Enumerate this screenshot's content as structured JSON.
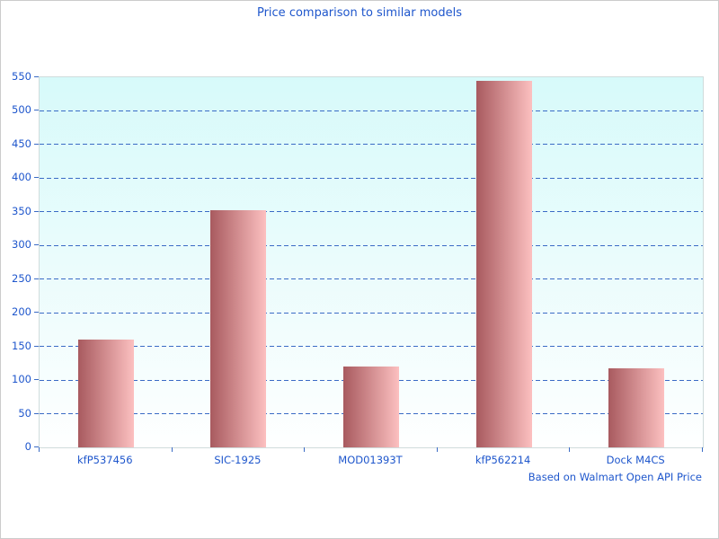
{
  "title": "Price comparison to similar models",
  "footer": "Based on Walmart Open API Price",
  "colors": {
    "text_blue": "#1e56cc",
    "gridline_blue": "#3a6bc5",
    "tick_blue": "#3a6bc5",
    "plot_bg_top": "#d7fafa",
    "plot_bg_bottom": "#feffff",
    "bar_gradient_left": "#a85a5f",
    "bar_gradient_right": "#fcc0c0",
    "plot_border": "#d0dcdc",
    "page_border": "#cccccc"
  },
  "chart_data": {
    "type": "bar",
    "title": "Price comparison to similar models",
    "subtitle": "Based on Walmart Open API Price",
    "categories": [
      "kfP537456",
      "SIC-1925",
      "MOD01393T",
      "kfP562214",
      "Dock M4CS"
    ],
    "values": [
      160,
      352,
      120,
      545,
      118
    ],
    "xlabel": "",
    "ylabel": "",
    "ylim": [
      0,
      550
    ],
    "ytick_interval": 50,
    "ytick_labels": [
      "0",
      "50",
      "100",
      "150",
      "200",
      "250",
      "300",
      "350",
      "400",
      "450",
      "500",
      "550"
    ],
    "grid": "horizontal dashed, at each 50 from 50 to 500",
    "legend": "none",
    "bar_width_fraction": 0.42,
    "bar_fill": "horizontal gradient #a85a5f to #fcc0c0",
    "plot_background": "vertical gradient #d7fafa to #feffff"
  }
}
